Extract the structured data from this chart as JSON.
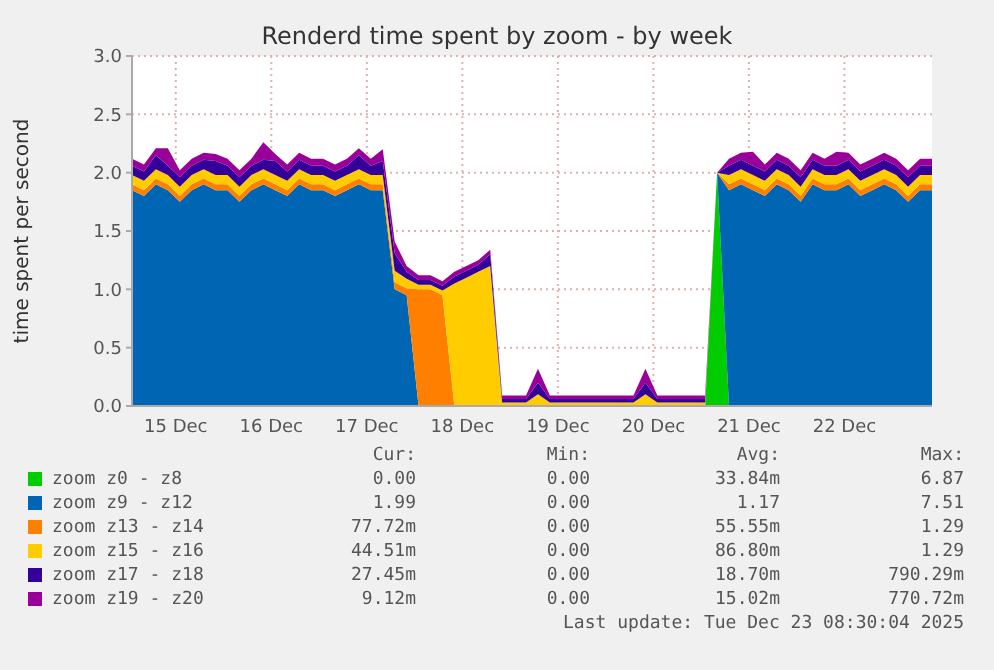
{
  "chart_data": {
    "type": "area",
    "stacked": true,
    "title": "Renderd time spent by zoom - by week",
    "ylabel": "time spent per second",
    "xlim": [
      "2025-12-15T01:00",
      "2025-12-23T10:00"
    ],
    "xticks": [
      {
        "value": "2025-12-15T12:00",
        "label": "15 Dec"
      },
      {
        "value": "2025-12-16T12:00",
        "label": "16 Dec"
      },
      {
        "value": "2025-12-17T12:00",
        "label": "17 Dec"
      },
      {
        "value": "2025-12-18T12:00",
        "label": "18 Dec"
      },
      {
        "value": "2025-12-19T12:00",
        "label": "19 Dec"
      },
      {
        "value": "2025-12-20T12:00",
        "label": "20 Dec"
      },
      {
        "value": "2025-12-21T12:00",
        "label": "21 Dec"
      },
      {
        "value": "2025-12-22T12:00",
        "label": "22 Dec"
      }
    ],
    "ylim": [
      0,
      3
    ],
    "yticks": [
      {
        "value": 0,
        "label": "0.0"
      },
      {
        "value": 0.5,
        "label": "0.5"
      },
      {
        "value": 1,
        "label": "1.0"
      },
      {
        "value": 1.5,
        "label": "1.5"
      },
      {
        "value": 2,
        "label": "2.0"
      },
      {
        "value": 2.5,
        "label": "2.5"
      },
      {
        "value": 3,
        "label": "3.0"
      }
    ],
    "grid": true,
    "legend": "bottom",
    "x": [
      "2025-12-15T01:00",
      "2025-12-15T04:00",
      "2025-12-15T07:00",
      "2025-12-15T10:00",
      "2025-12-15T13:00",
      "2025-12-15T16:00",
      "2025-12-15T19:00",
      "2025-12-15T22:00",
      "2025-12-16T01:00",
      "2025-12-16T04:00",
      "2025-12-16T07:00",
      "2025-12-16T10:00",
      "2025-12-16T13:00",
      "2025-12-16T16:00",
      "2025-12-16T19:00",
      "2025-12-16T22:00",
      "2025-12-17T01:00",
      "2025-12-17T04:00",
      "2025-12-17T07:00",
      "2025-12-17T10:00",
      "2025-12-17T13:00",
      "2025-12-17T16:00",
      "2025-12-17T19:00",
      "2025-12-17T22:00",
      "2025-12-18T01:00",
      "2025-12-18T04:00",
      "2025-12-18T07:00",
      "2025-12-18T10:00",
      "2025-12-18T13:00",
      "2025-12-18T16:00",
      "2025-12-18T19:00",
      "2025-12-18T22:00",
      "2025-12-19T01:00",
      "2025-12-19T04:00",
      "2025-12-19T07:00",
      "2025-12-19T10:00",
      "2025-12-19T13:00",
      "2025-12-19T16:00",
      "2025-12-19T19:00",
      "2025-12-19T22:00",
      "2025-12-20T01:00",
      "2025-12-20T04:00",
      "2025-12-20T07:00",
      "2025-12-20T10:00",
      "2025-12-20T13:00",
      "2025-12-20T16:00",
      "2025-12-20T19:00",
      "2025-12-20T22:00",
      "2025-12-21T01:00",
      "2025-12-21T04:00",
      "2025-12-21T07:00",
      "2025-12-21T10:00",
      "2025-12-21T13:00",
      "2025-12-21T16:00",
      "2025-12-21T19:00",
      "2025-12-21T22:00",
      "2025-12-22T01:00",
      "2025-12-22T04:00",
      "2025-12-22T07:00",
      "2025-12-22T10:00",
      "2025-12-22T13:00",
      "2025-12-22T16:00",
      "2025-12-22T19:00",
      "2025-12-22T22:00",
      "2025-12-23T01:00",
      "2025-12-23T04:00",
      "2025-12-23T07:00",
      "2025-12-23T10:00"
    ],
    "series": [
      {
        "name": "zoom z0 - z8",
        "color": "#00cc00",
        "values": [
          null,
          null,
          null,
          null,
          null,
          null,
          null,
          null,
          null,
          null,
          null,
          null,
          null,
          null,
          null,
          null,
          null,
          null,
          null,
          null,
          null,
          null,
          null,
          null,
          null,
          null,
          null,
          null,
          null,
          null,
          null,
          null,
          null,
          null,
          null,
          null,
          null,
          null,
          null,
          null,
          null,
          null,
          null,
          null,
          null,
          null,
          null,
          null,
          0,
          2.0,
          0,
          null,
          null,
          null,
          null,
          null,
          null,
          null,
          null,
          null,
          null,
          null,
          null,
          null,
          null,
          null,
          null,
          null
        ]
      },
      {
        "name": "zoom z9 - z12",
        "color": "#0066b3",
        "values": [
          1.85,
          1.8,
          1.9,
          1.85,
          1.75,
          1.85,
          1.9,
          1.85,
          1.85,
          1.75,
          1.85,
          1.9,
          1.85,
          1.8,
          1.9,
          1.85,
          1.85,
          1.8,
          1.85,
          1.9,
          1.85,
          1.85,
          1.0,
          0.95,
          0,
          0,
          0,
          0,
          0,
          0,
          0,
          0,
          0,
          0,
          0,
          0,
          0,
          0,
          0,
          0,
          0,
          0,
          0,
          0,
          0,
          0,
          0,
          0,
          0,
          0,
          1.85,
          1.9,
          1.85,
          1.8,
          1.9,
          1.85,
          1.75,
          1.9,
          1.85,
          1.85,
          1.9,
          1.8,
          1.85,
          1.9,
          1.85,
          1.75,
          1.85,
          1.85
        ]
      },
      {
        "name": "zoom z13 - z14",
        "color": "#ff8000",
        "values": [
          0.05,
          0.05,
          0.05,
          0.05,
          0.05,
          0.05,
          0.05,
          0.05,
          0.05,
          0.05,
          0.05,
          0.05,
          0.05,
          0.05,
          0.05,
          0.05,
          0.05,
          0.05,
          0.05,
          0.05,
          0.05,
          0.05,
          0.06,
          0.06,
          1.0,
          1.0,
          0.95,
          0,
          null,
          null,
          null,
          null,
          null,
          null,
          null,
          null,
          null,
          null,
          null,
          null,
          null,
          null,
          null,
          null,
          null,
          null,
          null,
          null,
          null,
          0,
          0.05,
          0.05,
          0.05,
          0.05,
          0.05,
          0.05,
          0.05,
          0.05,
          0.05,
          0.05,
          0.05,
          0.05,
          0.05,
          0.05,
          0.05,
          0.05,
          0.05,
          0.05
        ]
      },
      {
        "name": "zoom z15 - z16",
        "color": "#ffcc00",
        "values": [
          0.08,
          0.08,
          0.08,
          0.08,
          0.08,
          0.08,
          0.08,
          0.08,
          0.08,
          0.08,
          0.08,
          0.08,
          0.08,
          0.08,
          0.08,
          0.08,
          0.08,
          0.08,
          0.08,
          0.08,
          0.08,
          0.08,
          0.1,
          0.08,
          0.04,
          0.04,
          0.04,
          1.05,
          1.1,
          1.15,
          1.2,
          0.03,
          0.03,
          0.03,
          0.1,
          0.03,
          0.03,
          0.03,
          0.03,
          0.03,
          0.03,
          0.03,
          0.03,
          0.1,
          0.03,
          0.03,
          0.03,
          0.03,
          0.03,
          0,
          0.08,
          0.08,
          0.08,
          0.08,
          0.08,
          0.08,
          0.08,
          0.08,
          0.08,
          0.08,
          0.08,
          0.08,
          0.08,
          0.08,
          0.08,
          0.08,
          0.08,
          0.08
        ]
      },
      {
        "name": "zoom z17 - z18",
        "color": "#330099",
        "values": [
          0.08,
          0.08,
          0.12,
          0.08,
          0.08,
          0.08,
          0.08,
          0.12,
          0.08,
          0.08,
          0.08,
          0.08,
          0.12,
          0.08,
          0.08,
          0.08,
          0.08,
          0.08,
          0.08,
          0.12,
          0.08,
          0.12,
          0.15,
          0.06,
          0.04,
          0.04,
          0.04,
          0.06,
          0.06,
          0.06,
          0.1,
          0.03,
          0.03,
          0.03,
          0.1,
          0.03,
          0.03,
          0.03,
          0.03,
          0.03,
          0.03,
          0.03,
          0.03,
          0.1,
          0.03,
          0.03,
          0.03,
          0.03,
          0.03,
          0,
          0.08,
          0.08,
          0.08,
          0.08,
          0.08,
          0.08,
          0.08,
          0.08,
          0.08,
          0.08,
          0.08,
          0.08,
          0.08,
          0.08,
          0.08,
          0.08,
          0.08,
          0.08
        ]
      },
      {
        "name": "zoom z19 - z20",
        "color": "#990099",
        "values": [
          0.06,
          0.06,
          0.06,
          0.15,
          0.06,
          0.06,
          0.06,
          0.06,
          0.06,
          0.06,
          0.06,
          0.15,
          0.06,
          0.06,
          0.06,
          0.06,
          0.06,
          0.06,
          0.06,
          0.06,
          0.06,
          0.1,
          0.1,
          0.05,
          0.04,
          0.04,
          0.04,
          0.04,
          0.04,
          0.04,
          0.04,
          0.03,
          0.03,
          0.03,
          0.12,
          0.03,
          0.03,
          0.03,
          0.03,
          0.03,
          0.03,
          0.03,
          0.03,
          0.12,
          0.03,
          0.03,
          0.03,
          0.03,
          0.03,
          0,
          0.06,
          0.06,
          0.12,
          0.06,
          0.06,
          0.06,
          0.06,
          0.06,
          0.06,
          0.12,
          0.06,
          0.06,
          0.06,
          0.06,
          0.06,
          0.06,
          0.06,
          0.06
        ]
      }
    ],
    "annotations": [
      "Cur:",
      "Min:",
      "Avg:",
      "Max:",
      "0.00",
      "0.00",
      "33.84m",
      "6.87",
      "1.99",
      "0.00",
      "1.17",
      "7.51",
      "77.72m",
      "0.00",
      "55.55m",
      "1.29",
      "44.51m",
      "0.00",
      "86.80m",
      "1.29",
      "27.45m",
      "0.00",
      "18.70m",
      "790.29m",
      "9.12m",
      "0.00",
      "15.02m",
      "770.72m",
      "Last update: Tue Dec 23 08:30:04 2025"
    ]
  }
}
